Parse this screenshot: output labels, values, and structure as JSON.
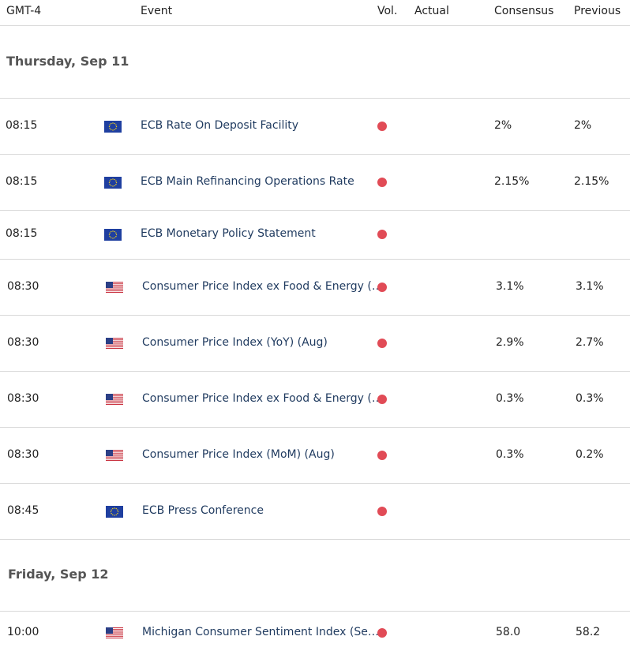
{
  "header": {
    "tz": "GMT-4",
    "event": "Event",
    "vol": "Vol.",
    "actual": "Actual",
    "consensus": "Consensus",
    "previous": "Previous"
  },
  "days": [
    {
      "label": "Thursday, Sep 11"
    },
    {
      "label": "Friday, Sep 12"
    }
  ],
  "rows": [
    {
      "time": "08:15",
      "flag": "eu-flag",
      "event": "ECB Rate On Deposit Facility",
      "consensus": "2%",
      "previous": "2%"
    },
    {
      "time": "08:15",
      "flag": "eu-flag",
      "event": "ECB Main Refinancing Operations Rate",
      "consensus": "2.15%",
      "previous": "2.15%"
    },
    {
      "time": "08:15",
      "flag": "eu-flag",
      "event": "ECB Monetary Policy Statement",
      "consensus": "",
      "previous": ""
    },
    {
      "time": "08:30",
      "flag": "us-flag",
      "event": "Consumer Price Index ex Food & Energy (…",
      "consensus": "3.1%",
      "previous": "3.1%"
    },
    {
      "time": "08:30",
      "flag": "us-flag",
      "event": "Consumer Price Index (YoY) (Aug)",
      "consensus": "2.9%",
      "previous": "2.7%"
    },
    {
      "time": "08:30",
      "flag": "us-flag",
      "event": "Consumer Price Index ex Food & Energy (…",
      "consensus": "0.3%",
      "previous": "0.3%"
    },
    {
      "time": "08:30",
      "flag": "us-flag",
      "event": "Consumer Price Index (MoM) (Aug)",
      "consensus": "0.3%",
      "previous": "0.2%"
    },
    {
      "time": "08:45",
      "flag": "eu-flag",
      "event": "ECB Press Conference",
      "consensus": "",
      "previous": ""
    },
    {
      "time": "10:00",
      "flag": "us-flag",
      "event": "Michigan Consumer Sentiment Index (Se…",
      "consensus": "58.0",
      "previous": "58.2"
    }
  ],
  "colors": {
    "dot": "#e14b56",
    "eventText": "#1f3a5f",
    "dayText": "#555555",
    "rule": "#d9d9d9"
  }
}
